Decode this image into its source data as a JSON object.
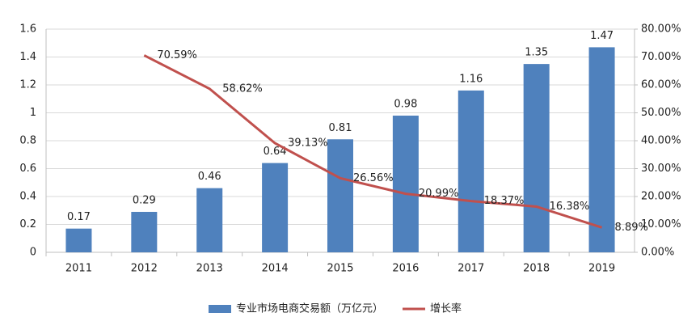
{
  "chart_data": {
    "type": "bar",
    "categories": [
      "2011",
      "2012",
      "2013",
      "2014",
      "2015",
      "2016",
      "2017",
      "2018",
      "2019"
    ],
    "series": [
      {
        "name": "专业市场电商交易额（万亿元）",
        "type": "bar",
        "color": "#4f81bd",
        "values": [
          0.17,
          0.29,
          0.46,
          0.64,
          0.81,
          0.98,
          1.16,
          1.35,
          1.47
        ]
      },
      {
        "name": "增长率",
        "type": "line",
        "axis": "y2",
        "color": "#c0504d",
        "values": [
          null,
          70.59,
          58.62,
          39.13,
          26.56,
          20.99,
          18.37,
          16.38,
          8.89
        ],
        "value_labels": [
          null,
          "70.59%",
          "58.62%",
          "39.13%",
          "26.56%",
          "20.99%",
          "18.37%",
          "16.38%",
          "8.89%"
        ]
      }
    ],
    "ylim": [
      0,
      1.6
    ],
    "yticks": [
      0,
      0.2,
      0.4,
      0.6,
      0.8,
      1,
      1.2,
      1.4,
      1.6
    ],
    "y2lim": [
      0,
      80
    ],
    "y2ticks": [
      {
        "value": 0,
        "label": "0.00%"
      },
      {
        "value": 10,
        "label": "10.00%"
      },
      {
        "value": 20,
        "label": "20.00%"
      },
      {
        "value": 30,
        "label": "30.00%"
      },
      {
        "value": 40,
        "label": "40.00%"
      },
      {
        "value": 50,
        "label": "50.00%"
      },
      {
        "value": 60,
        "label": "60.00%"
      },
      {
        "value": 70,
        "label": "70.00%"
      },
      {
        "value": 80,
        "label": "80.00%"
      }
    ],
    "grid": true,
    "legend": "bottom"
  }
}
